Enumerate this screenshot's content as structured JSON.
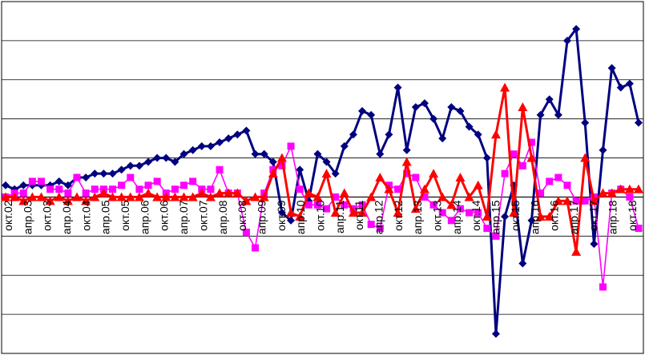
{
  "chart_data": {
    "type": "line",
    "grid": true,
    "legend": "none",
    "ylim": [
      -4,
      5
    ],
    "tick_labels": [
      "окт.02",
      "апр.03",
      "окт.03",
      "апр.04",
      "окт.04",
      "апр.05",
      "окт.05",
      "апр.06",
      "окт.06",
      "апр.07",
      "окт.07",
      "апр.08",
      "окт.08",
      "апр.09",
      "окт.09",
      "апр.10",
      "окт.10",
      "апр.11",
      "окт.11",
      "апр.12",
      "окт.12",
      "апр.13",
      "окт.13",
      "апр.14",
      "окт.14",
      "апр.15",
      "окт.15",
      "апр.16",
      "окт.16",
      "апр.17",
      "окт.17",
      "апр.18",
      "окт.18"
    ],
    "series": [
      {
        "color": "#000080",
        "marker": "diamond",
        "values": [
          0.3,
          0.2,
          0.3,
          0.3,
          0.3,
          0.3,
          0.4,
          0.3,
          0.5,
          0.5,
          0.6,
          0.6,
          0.6,
          0.7,
          0.8,
          0.8,
          0.9,
          1.0,
          1.0,
          0.9,
          1.1,
          1.2,
          1.3,
          1.3,
          1.4,
          1.5,
          1.6,
          1.7,
          1.1,
          1.1,
          0.9,
          -0.4,
          -0.6,
          0.7,
          -0.1,
          1.1,
          0.9,
          0.6,
          1.3,
          1.6,
          2.2,
          2.1,
          1.1,
          1.6,
          2.8,
          1.2,
          2.3,
          2.4,
          2.0,
          1.5,
          2.3,
          2.2,
          1.8,
          1.6,
          1.0,
          -3.5,
          -0.5,
          0.3,
          -1.7,
          -0.6,
          2.1,
          2.5,
          2.1,
          4.0,
          4.3,
          1.9,
          -1.2,
          1.2,
          3.3,
          2.8,
          2.9,
          1.9
        ]
      },
      {
        "color": "#ff00ff",
        "marker": "square",
        "values": [
          0.0,
          0.1,
          0.1,
          0.4,
          0.4,
          0.2,
          0.2,
          0.1,
          0.5,
          0.1,
          0.2,
          0.2,
          0.2,
          0.3,
          0.5,
          0.2,
          0.3,
          0.4,
          0.1,
          0.2,
          0.3,
          0.4,
          0.2,
          0.2,
          0.7,
          0.1,
          0.1,
          -0.9,
          -1.3,
          0.1,
          0.7,
          0.8,
          1.3,
          0.2,
          -0.2,
          -0.2,
          -0.3,
          0.0,
          -0.2,
          -0.3,
          -0.2,
          -0.7,
          -0.8,
          0.3,
          0.2,
          0.6,
          0.5,
          0.0,
          -0.2,
          -0.4,
          -0.6,
          -0.3,
          -0.4,
          -0.4,
          -0.8,
          -1.0,
          0.6,
          1.1,
          0.8,
          1.4,
          0.1,
          0.4,
          0.5,
          0.3,
          -0.1,
          -0.1,
          0.0,
          -2.3,
          0.1,
          0.2,
          0.0,
          -0.8
        ]
      },
      {
        "color": "#ff0000",
        "marker": "triangle",
        "values": [
          0.0,
          0.0,
          -0.1,
          0.0,
          0.0,
          -0.1,
          0.0,
          -0.1,
          0.0,
          -0.1,
          0.0,
          0.1,
          0.0,
          0.0,
          0.0,
          0.0,
          0.1,
          0.0,
          0.0,
          0.0,
          0.0,
          0.0,
          0.1,
          0.0,
          0.1,
          0.1,
          0.1,
          -0.1,
          0.0,
          0.0,
          0.6,
          1.0,
          -0.4,
          -0.5,
          0.1,
          0.0,
          0.6,
          -0.4,
          0.1,
          -0.4,
          -0.4,
          0.0,
          0.5,
          0.2,
          -0.4,
          0.9,
          -0.3,
          0.2,
          0.6,
          0.0,
          -0.2,
          0.5,
          0.0,
          0.3,
          -0.5,
          1.6,
          2.8,
          -0.4,
          2.3,
          1.0,
          -0.5,
          -0.5,
          -0.1,
          -0.1,
          -1.4,
          1.0,
          -0.1,
          0.1,
          0.1,
          0.2,
          0.2,
          0.2
        ]
      }
    ]
  }
}
